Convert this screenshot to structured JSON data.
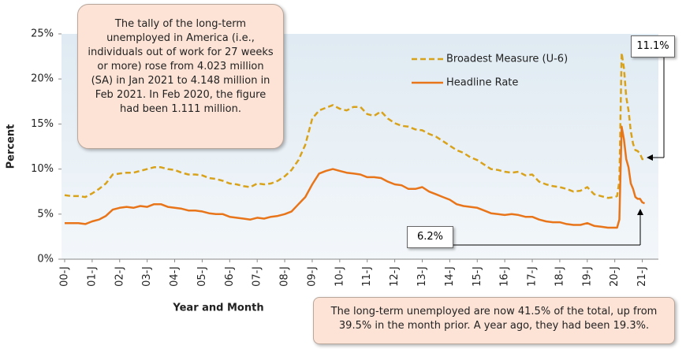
{
  "chart_data": {
    "type": "line",
    "y_label": "Percent",
    "x_label": "Year and Month",
    "annotations": [
      "The tally of the long-term unemployed in America (i.e., individuals out of work for 27 weeks or more) rose from 4.023 million (SA) in Jan 2021 to 4.148 million in Feb 2021. In Feb 2020, the figure had been 1.111 million.",
      "The long-term unemployed are now 41.5% of the total, up from 39.5%  in the month prior. A year ago, they had been 19.3%.",
      "11.1%",
      "6.2%"
    ],
    "x": [
      2000,
      2000.25,
      2000.5,
      2000.75,
      2001,
      2001.25,
      2001.5,
      2001.75,
      2002,
      2002.25,
      2002.5,
      2002.75,
      2003,
      2003.25,
      2003.5,
      2003.75,
      2004,
      2004.25,
      2004.5,
      2004.75,
      2005,
      2005.25,
      2005.5,
      2005.75,
      2006,
      2006.25,
      2006.5,
      2006.75,
      2007,
      2007.25,
      2007.5,
      2007.75,
      2008,
      2008.25,
      2008.5,
      2008.75,
      2009,
      2009.25,
      2009.5,
      2009.75,
      2010,
      2010.25,
      2010.5,
      2010.75,
      2011,
      2011.25,
      2011.5,
      2011.75,
      2012,
      2012.25,
      2012.5,
      2012.75,
      2013,
      2013.25,
      2013.5,
      2013.75,
      2014,
      2014.25,
      2014.5,
      2014.75,
      2015,
      2015.25,
      2015.5,
      2015.75,
      2016,
      2016.25,
      2016.5,
      2016.75,
      2017,
      2017.25,
      2017.5,
      2017.75,
      2018,
      2018.25,
      2018.5,
      2018.75,
      2019,
      2019.25,
      2019.5,
      2019.75,
      2020,
      2020.083,
      2020.167,
      2020.25,
      2020.333,
      2020.417,
      2020.5,
      2020.583,
      2020.667,
      2020.75,
      2020.833,
      2020.917,
      2021,
      2021.083
    ],
    "series": [
      {
        "name": "Broadest Measure (U-6)",
        "color": "#d9a21b",
        "dashed": true,
        "values": [
          7.1,
          7.0,
          7.0,
          6.9,
          7.3,
          7.8,
          8.4,
          9.4,
          9.5,
          9.6,
          9.6,
          9.8,
          10.0,
          10.2,
          10.2,
          10.0,
          9.9,
          9.6,
          9.4,
          9.4,
          9.3,
          9.0,
          8.9,
          8.7,
          8.4,
          8.3,
          8.1,
          8.0,
          8.4,
          8.3,
          8.4,
          8.7,
          9.2,
          9.9,
          11.0,
          12.7,
          15.6,
          16.5,
          16.8,
          17.1,
          16.7,
          16.5,
          16.9,
          16.9,
          16.1,
          15.9,
          16.4,
          15.6,
          15.1,
          14.8,
          14.7,
          14.4,
          14.3,
          13.9,
          13.6,
          13.1,
          12.6,
          12.1,
          11.8,
          11.3,
          11.0,
          10.5,
          10.0,
          9.9,
          9.7,
          9.6,
          9.7,
          9.3,
          9.4,
          8.6,
          8.3,
          8.1,
          8.0,
          7.8,
          7.5,
          7.6,
          8.0,
          7.2,
          7.0,
          6.8,
          6.9,
          7.0,
          8.7,
          22.9,
          21.2,
          18.0,
          16.5,
          14.2,
          12.8,
          12.1,
          12.0,
          11.7,
          11.1,
          11.1
        ]
      },
      {
        "name": "Headline Rate",
        "color": "#e8751a",
        "dashed": false,
        "values": [
          4.0,
          4.0,
          4.0,
          3.9,
          4.2,
          4.4,
          4.8,
          5.5,
          5.7,
          5.8,
          5.7,
          5.9,
          5.8,
          6.1,
          6.1,
          5.8,
          5.7,
          5.6,
          5.4,
          5.4,
          5.3,
          5.1,
          5.0,
          5.0,
          4.7,
          4.6,
          4.5,
          4.4,
          4.6,
          4.5,
          4.7,
          4.8,
          5.0,
          5.3,
          6.1,
          6.9,
          8.3,
          9.5,
          9.8,
          10.0,
          9.8,
          9.6,
          9.5,
          9.4,
          9.1,
          9.1,
          9.0,
          8.6,
          8.3,
          8.2,
          7.8,
          7.8,
          8.0,
          7.5,
          7.2,
          6.9,
          6.6,
          6.1,
          5.9,
          5.8,
          5.7,
          5.4,
          5.1,
          5.0,
          4.9,
          5.0,
          4.9,
          4.7,
          4.7,
          4.4,
          4.2,
          4.1,
          4.1,
          3.9,
          3.8,
          3.8,
          4.0,
          3.7,
          3.6,
          3.5,
          3.5,
          3.5,
          4.4,
          14.7,
          13.3,
          11.1,
          10.2,
          8.4,
          7.8,
          6.9,
          6.7,
          6.7,
          6.3,
          6.2
        ]
      }
    ],
    "xlim": [
      2000,
      2021.5
    ],
    "xticks": [
      {
        "value": 2000,
        "label": "00-J"
      },
      {
        "value": 2001,
        "label": "01-J"
      },
      {
        "value": 2002,
        "label": "02-J"
      },
      {
        "value": 2003,
        "label": "03-J"
      },
      {
        "value": 2004,
        "label": "04-J"
      },
      {
        "value": 2005,
        "label": "05-J"
      },
      {
        "value": 2006,
        "label": "06-J"
      },
      {
        "value": 2007,
        "label": "07-J"
      },
      {
        "value": 2008,
        "label": "08-J"
      },
      {
        "value": 2009,
        "label": "09-J"
      },
      {
        "value": 2010,
        "label": "10-J"
      },
      {
        "value": 2011,
        "label": "11-J"
      },
      {
        "value": 2012,
        "label": "12-J"
      },
      {
        "value": 2013,
        "label": "13-J"
      },
      {
        "value": 2014,
        "label": "14-J"
      },
      {
        "value": 2015,
        "label": "15-J"
      },
      {
        "value": 2016,
        "label": "16-J"
      },
      {
        "value": 2017,
        "label": "17-J"
      },
      {
        "value": 2018,
        "label": "18-J"
      },
      {
        "value": 2019,
        "label": "19-J"
      },
      {
        "value": 2020,
        "label": "20-J"
      },
      {
        "value": 2021,
        "label": "21-J"
      }
    ],
    "ylim": [
      0,
      25
    ],
    "yticks": [
      {
        "value": 0,
        "label": "0%"
      },
      {
        "value": 5,
        "label": "5%"
      },
      {
        "value": 10,
        "label": "10%"
      },
      {
        "value": 15,
        "label": "15%"
      },
      {
        "value": 20,
        "label": "20%"
      },
      {
        "value": 25,
        "label": "25%"
      }
    ]
  }
}
